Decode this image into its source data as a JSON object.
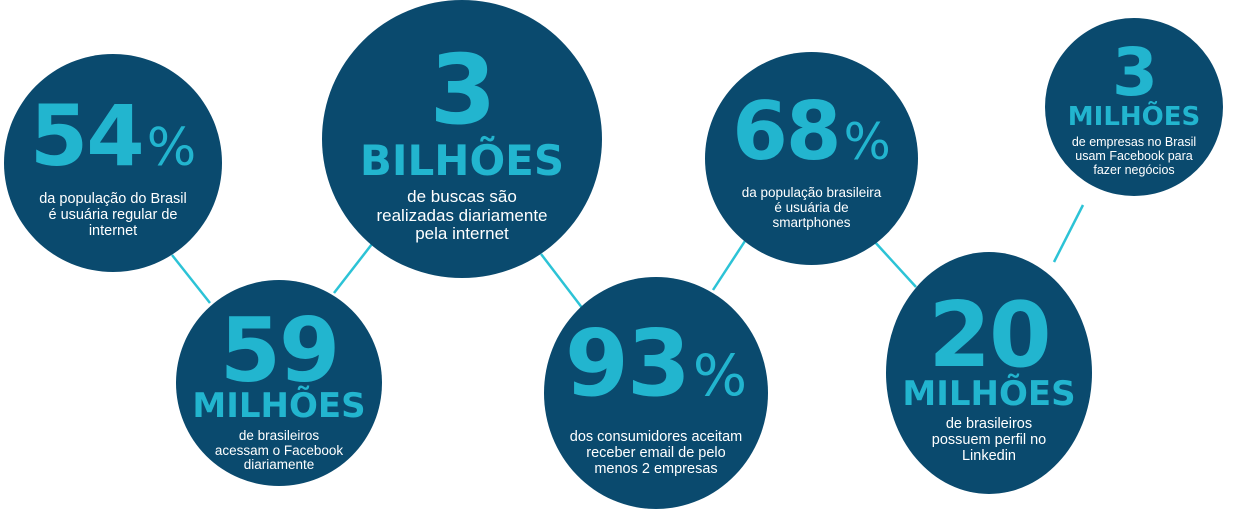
{
  "colors": {
    "bubble": "#0a4a6e",
    "accent": "#22b5cf",
    "connector": "#2cc3d6",
    "text": "#ffffff",
    "background": "#ffffff"
  },
  "stats": [
    {
      "number": "54",
      "percent": "%",
      "unit": "",
      "description": "da população do Brasil\né usuária regular de\ninternet"
    },
    {
      "number": "59",
      "percent": "",
      "unit": "MILHÕES",
      "description": "de brasileiros\nacessam o Facebook\ndiariamente"
    },
    {
      "number": "3",
      "percent": "",
      "unit": "BILHÕES",
      "description": "de buscas são\nrealizadas diariamente\npela internet"
    },
    {
      "number": "93",
      "percent": "%",
      "unit": "",
      "description": "dos consumidores aceitam\nreceber email de pelo\nmenos 2 empresas"
    },
    {
      "number": "68",
      "percent": "%",
      "unit": "",
      "description": "da população brasileira\né usuária de\nsmartphones"
    },
    {
      "number": "20",
      "percent": "",
      "unit": "MILHÕES",
      "description": "de brasileiros\npossuem perfil no\nLinkedin"
    },
    {
      "number": "3",
      "percent": "",
      "unit": "MILHÕES",
      "description": "de empresas no Brasil\nusam Facebook para\nfazer negócios"
    }
  ]
}
